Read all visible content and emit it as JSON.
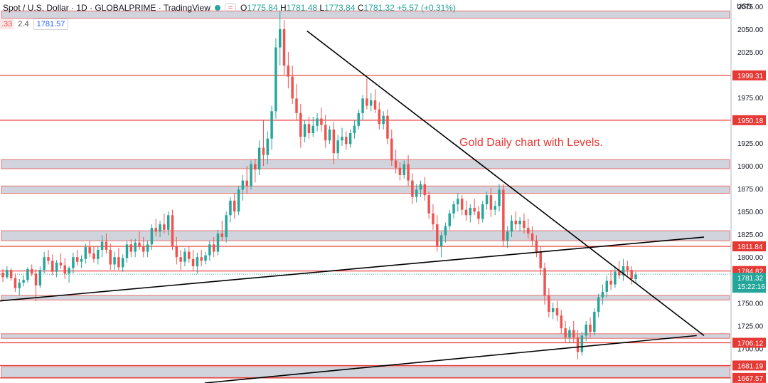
{
  "header": {
    "title": "Spot / U.S. Dollar · 1D · GLOBALPRIME · TradingView",
    "status_icon": "green-dot-icon",
    "wave_icon": "≈",
    "ohlc": {
      "o_label": "O",
      "o": "1775.84",
      "h_label": "H",
      "h": "1781.48",
      "l_label": "L",
      "l": "1773.84",
      "c_label": "C",
      "c": "1781.32",
      "chg": "+5.57 (+0.31%)"
    }
  },
  "subheader": {
    "left": ".33",
    "mid": "2.4",
    "price": "1781.57"
  },
  "currency": "USD",
  "annotation": "Gold Daily chart with Levels.",
  "chart_data": {
    "type": "candlestick",
    "ylim": [
      1662,
      2082
    ],
    "y_ticks": [
      1700,
      1725,
      1750,
      1775,
      1800,
      1825,
      1850,
      1875,
      1900,
      1925,
      1950,
      1975,
      2000,
      2025,
      2050,
      2075
    ],
    "y_tick_labels": [
      "1700.00",
      "1725.00",
      "1750.00",
      "1775.00",
      "1800.00",
      "1825.00",
      "1850.00",
      "1875.00",
      "1900.00",
      "1925.00",
      "1950.00",
      "1975.00",
      "2000.00",
      "2025.00",
      "2050.00",
      "2075.00"
    ],
    "levels": [
      1999.31,
      1950.18,
      1811.84,
      1784.82,
      1706.12,
      1681.19,
      1667.57
    ],
    "level_labels": [
      "1999.31",
      "1950.18",
      "1811.84",
      "1784.82",
      "1706.12",
      "1681.19",
      "1667.57"
    ],
    "zones": [
      [
        2062,
        2070
      ],
      [
        1897,
        1907
      ],
      [
        1870,
        1878
      ],
      [
        1818,
        1829
      ],
      [
        1753,
        1758
      ],
      [
        1711,
        1716
      ],
      [
        1668,
        1680
      ]
    ],
    "current_price": "1781.32",
    "countdown": "15:22:16",
    "colors": {
      "up": "#26a69a",
      "down": "#ef5350",
      "level": "#e53935",
      "zone": "#d1d4dc",
      "trend": "#000000"
    },
    "candles": [
      [
        1783,
        1787,
        1773,
        1778
      ],
      [
        1778,
        1790,
        1776,
        1786
      ],
      [
        1786,
        1788,
        1774,
        1777
      ],
      [
        1777,
        1782,
        1762,
        1766
      ],
      [
        1766,
        1776,
        1758,
        1772
      ],
      [
        1772,
        1780,
        1768,
        1775
      ],
      [
        1775,
        1789,
        1772,
        1787
      ],
      [
        1787,
        1792,
        1779,
        1782
      ],
      [
        1782,
        1787,
        1752,
        1769
      ],
      [
        1769,
        1790,
        1766,
        1786
      ],
      [
        1786,
        1806,
        1782,
        1800
      ],
      [
        1800,
        1808,
        1792,
        1796
      ],
      [
        1796,
        1803,
        1780,
        1784
      ],
      [
        1784,
        1797,
        1778,
        1794
      ],
      [
        1794,
        1804,
        1787,
        1791
      ],
      [
        1791,
        1799,
        1776,
        1782
      ],
      [
        1782,
        1790,
        1772,
        1788
      ],
      [
        1788,
        1805,
        1782,
        1800
      ],
      [
        1800,
        1808,
        1791,
        1795
      ],
      [
        1795,
        1802,
        1788,
        1798
      ],
      [
        1798,
        1815,
        1793,
        1811
      ],
      [
        1811,
        1818,
        1800,
        1804
      ],
      [
        1804,
        1812,
        1794,
        1798
      ],
      [
        1798,
        1812,
        1792,
        1808
      ],
      [
        1808,
        1824,
        1800,
        1817
      ],
      [
        1817,
        1826,
        1804,
        1808
      ],
      [
        1808,
        1815,
        1786,
        1792
      ],
      [
        1792,
        1806,
        1786,
        1800
      ],
      [
        1800,
        1810,
        1786,
        1789
      ],
      [
        1789,
        1803,
        1784,
        1799
      ],
      [
        1799,
        1818,
        1794,
        1814
      ],
      [
        1814,
        1820,
        1800,
        1806
      ],
      [
        1806,
        1820,
        1800,
        1816
      ],
      [
        1816,
        1828,
        1808,
        1812
      ],
      [
        1812,
        1822,
        1800,
        1806
      ],
      [
        1806,
        1818,
        1800,
        1814
      ],
      [
        1814,
        1836,
        1808,
        1832
      ],
      [
        1832,
        1842,
        1823,
        1828
      ],
      [
        1828,
        1840,
        1822,
        1836
      ],
      [
        1836,
        1848,
        1826,
        1830
      ],
      [
        1830,
        1850,
        1824,
        1846
      ],
      [
        1846,
        1852,
        1808,
        1812
      ],
      [
        1812,
        1822,
        1792,
        1800
      ],
      [
        1800,
        1808,
        1786,
        1795
      ],
      [
        1795,
        1810,
        1790,
        1806
      ],
      [
        1806,
        1812,
        1794,
        1798
      ],
      [
        1798,
        1808,
        1785,
        1790
      ],
      [
        1790,
        1805,
        1782,
        1800
      ],
      [
        1800,
        1808,
        1790,
        1796
      ],
      [
        1796,
        1806,
        1792,
        1802
      ],
      [
        1802,
        1818,
        1796,
        1814
      ],
      [
        1814,
        1822,
        1800,
        1806
      ],
      [
        1806,
        1830,
        1802,
        1826
      ],
      [
        1826,
        1840,
        1818,
        1822
      ],
      [
        1822,
        1850,
        1816,
        1846
      ],
      [
        1846,
        1866,
        1838,
        1862
      ],
      [
        1862,
        1870,
        1842,
        1850
      ],
      [
        1850,
        1878,
        1846,
        1874
      ],
      [
        1874,
        1890,
        1862,
        1884
      ],
      [
        1884,
        1900,
        1870,
        1878
      ],
      [
        1878,
        1906,
        1874,
        1902
      ],
      [
        1902,
        1908,
        1882,
        1896
      ],
      [
        1896,
        1928,
        1890,
        1920
      ],
      [
        1920,
        1950,
        1900,
        1912
      ],
      [
        1912,
        1938,
        1902,
        1930
      ],
      [
        1930,
        1966,
        1918,
        1960
      ],
      [
        1960,
        2040,
        1952,
        2030
      ],
      [
        2030,
        2070,
        2010,
        2050
      ],
      [
        2050,
        2060,
        2000,
        2010
      ],
      [
        2010,
        2025,
        1985,
        1998
      ],
      [
        1998,
        2010,
        1968,
        1974
      ],
      [
        1974,
        1990,
        1950,
        1958
      ],
      [
        1958,
        1968,
        1920,
        1932
      ],
      [
        1932,
        1950,
        1926,
        1946
      ],
      [
        1946,
        1954,
        1930,
        1936
      ],
      [
        1936,
        1954,
        1932,
        1944
      ],
      [
        1944,
        1958,
        1938,
        1952
      ],
      [
        1952,
        1964,
        1938,
        1945
      ],
      [
        1945,
        1956,
        1920,
        1928
      ],
      [
        1928,
        1944,
        1924,
        1940
      ],
      [
        1940,
        1948,
        1902,
        1914
      ],
      [
        1914,
        1934,
        1908,
        1928
      ],
      [
        1928,
        1942,
        1922,
        1932
      ],
      [
        1932,
        1938,
        1918,
        1924
      ],
      [
        1924,
        1940,
        1920,
        1936
      ],
      [
        1936,
        1950,
        1930,
        1944
      ],
      [
        1944,
        1962,
        1940,
        1958
      ],
      [
        1958,
        1978,
        1950,
        1974
      ],
      [
        1974,
        1996,
        1962,
        1966
      ],
      [
        1966,
        1980,
        1960,
        1972
      ],
      [
        1972,
        1984,
        1958,
        1962
      ],
      [
        1962,
        1970,
        1940,
        1946
      ],
      [
        1946,
        1960,
        1940,
        1955
      ],
      [
        1955,
        1962,
        1924,
        1930
      ],
      [
        1930,
        1940,
        1900,
        1906
      ],
      [
        1906,
        1918,
        1892,
        1898
      ],
      [
        1898,
        1904,
        1884,
        1890
      ],
      [
        1890,
        1906,
        1886,
        1902
      ],
      [
        1902,
        1912,
        1878,
        1884
      ],
      [
        1884,
        1892,
        1858,
        1866
      ],
      [
        1866,
        1880,
        1860,
        1874
      ],
      [
        1874,
        1884,
        1866,
        1880
      ],
      [
        1880,
        1888,
        1862,
        1868
      ],
      [
        1868,
        1872,
        1842,
        1848
      ],
      [
        1848,
        1858,
        1830,
        1836
      ],
      [
        1836,
        1846,
        1806,
        1812
      ],
      [
        1812,
        1828,
        1800,
        1824
      ],
      [
        1824,
        1838,
        1816,
        1834
      ],
      [
        1834,
        1852,
        1830,
        1848
      ],
      [
        1848,
        1862,
        1842,
        1858
      ],
      [
        1858,
        1870,
        1850,
        1864
      ],
      [
        1864,
        1868,
        1846,
        1852
      ],
      [
        1852,
        1862,
        1840,
        1846
      ],
      [
        1846,
        1858,
        1838,
        1854
      ],
      [
        1854,
        1864,
        1846,
        1850
      ],
      [
        1850,
        1856,
        1836,
        1842
      ],
      [
        1842,
        1862,
        1838,
        1858
      ],
      [
        1858,
        1872,
        1852,
        1868
      ],
      [
        1868,
        1876,
        1844,
        1852
      ],
      [
        1852,
        1862,
        1846,
        1856
      ],
      [
        1856,
        1880,
        1850,
        1874
      ],
      [
        1874,
        1880,
        1812,
        1818
      ],
      [
        1818,
        1834,
        1810,
        1828
      ],
      [
        1828,
        1846,
        1822,
        1840
      ],
      [
        1840,
        1850,
        1830,
        1836
      ],
      [
        1836,
        1844,
        1828,
        1840
      ],
      [
        1840,
        1848,
        1826,
        1832
      ],
      [
        1832,
        1842,
        1820,
        1826
      ],
      [
        1826,
        1834,
        1812,
        1818
      ],
      [
        1818,
        1824,
        1800,
        1806
      ],
      [
        1806,
        1812,
        1780,
        1788
      ],
      [
        1788,
        1794,
        1748,
        1758
      ],
      [
        1758,
        1766,
        1734,
        1740
      ],
      [
        1740,
        1750,
        1732,
        1744
      ],
      [
        1744,
        1752,
        1730,
        1736
      ],
      [
        1736,
        1742,
        1716,
        1722
      ],
      [
        1722,
        1730,
        1706,
        1712
      ],
      [
        1712,
        1724,
        1706,
        1720
      ],
      [
        1720,
        1730,
        1706,
        1712
      ],
      [
        1712,
        1720,
        1688,
        1696
      ],
      [
        1696,
        1718,
        1692,
        1714
      ],
      [
        1714,
        1730,
        1708,
        1726
      ],
      [
        1726,
        1734,
        1712,
        1718
      ],
      [
        1718,
        1744,
        1714,
        1740
      ],
      [
        1740,
        1760,
        1734,
        1756
      ],
      [
        1756,
        1770,
        1748,
        1762
      ],
      [
        1762,
        1780,
        1756,
        1774
      ],
      [
        1774,
        1786,
        1764,
        1770
      ],
      [
        1770,
        1790,
        1766,
        1784
      ],
      [
        1784,
        1796,
        1776,
        1780
      ],
      [
        1780,
        1798,
        1774,
        1790
      ],
      [
        1790,
        1796,
        1780,
        1786
      ],
      [
        1786,
        1790,
        1770,
        1776
      ],
      [
        1776,
        1784,
        1772,
        1781
      ]
    ],
    "trendlines": [
      {
        "name": "descending-trendline",
        "from": [
          0.42,
          2048
        ],
        "to": [
          1.0,
          1714
        ]
      },
      {
        "name": "rising-upper-trendline",
        "from": [
          0.0,
          1752
        ],
        "to": [
          1.0,
          1822
        ]
      },
      {
        "name": "rising-lower-trendline",
        "from": [
          0.28,
          1662
        ],
        "to": [
          0.99,
          1714
        ]
      }
    ]
  }
}
